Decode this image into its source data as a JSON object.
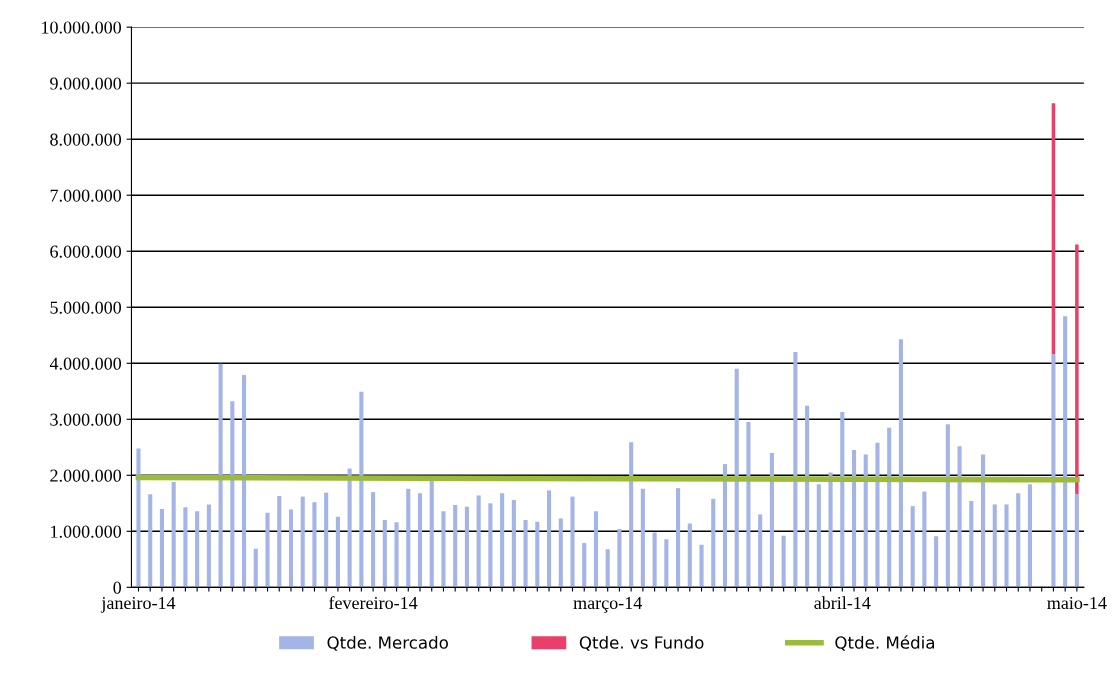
{
  "chart_data": {
    "type": "bar",
    "categories": [
      "janeiro-14",
      null,
      null,
      null,
      null,
      null,
      null,
      null,
      null,
      null,
      null,
      null,
      null,
      null,
      null,
      null,
      null,
      null,
      null,
      null,
      "fevereiro-14",
      null,
      null,
      null,
      null,
      null,
      null,
      null,
      null,
      null,
      null,
      null,
      null,
      null,
      null,
      null,
      null,
      null,
      null,
      null,
      "março-14",
      null,
      null,
      null,
      null,
      null,
      null,
      null,
      null,
      null,
      null,
      null,
      null,
      null,
      null,
      null,
      null,
      null,
      null,
      null,
      "abril-14",
      null,
      null,
      null,
      null,
      null,
      null,
      null,
      null,
      null,
      null,
      null,
      null,
      null,
      null,
      null,
      null,
      null,
      null,
      null,
      "maio-14"
    ],
    "series": [
      {
        "name": "Qtde. Mercado",
        "color": "#a4b4e6",
        "values": [
          2480000,
          1660000,
          1400000,
          1880000,
          1430000,
          1360000,
          1480000,
          3990000,
          3320000,
          3790000,
          690000,
          1330000,
          1630000,
          1390000,
          1620000,
          1520000,
          1690000,
          1260000,
          2120000,
          3490000,
          1700000,
          1200000,
          1160000,
          1760000,
          1680000,
          1900000,
          1360000,
          1470000,
          1440000,
          1640000,
          1500000,
          1680000,
          1560000,
          1200000,
          1170000,
          1730000,
          1230000,
          1620000,
          790000,
          1360000,
          680000,
          1040000,
          2590000,
          1760000,
          980000,
          860000,
          1770000,
          1140000,
          760000,
          1580000,
          2200000,
          3900000,
          2950000,
          1300000,
          2400000,
          920000,
          4200000,
          3240000,
          1840000,
          2050000,
          3130000,
          2450000,
          2370000,
          2580000,
          2850000,
          4430000,
          1450000,
          1710000,
          910000,
          2910000,
          2520000,
          1540000,
          2370000,
          1480000,
          1480000,
          1680000,
          1840000,
          null,
          4160000,
          4840000,
          1660000
        ]
      },
      {
        "name": "Qtde. vs Fundo",
        "color": "#e8406a",
        "values": [
          null,
          null,
          null,
          null,
          null,
          null,
          null,
          null,
          null,
          null,
          null,
          null,
          null,
          null,
          null,
          null,
          null,
          null,
          null,
          null,
          null,
          null,
          null,
          null,
          null,
          null,
          null,
          null,
          null,
          null,
          null,
          null,
          null,
          null,
          null,
          null,
          null,
          null,
          null,
          null,
          null,
          null,
          null,
          null,
          null,
          null,
          null,
          null,
          null,
          null,
          null,
          null,
          null,
          null,
          null,
          null,
          null,
          null,
          null,
          null,
          null,
          null,
          null,
          null,
          null,
          null,
          null,
          null,
          null,
          null,
          null,
          null,
          null,
          null,
          null,
          null,
          null,
          null,
          4480000,
          null,
          4460000
        ],
        "base": [
          null,
          null,
          null,
          null,
          null,
          null,
          null,
          null,
          null,
          null,
          null,
          null,
          null,
          null,
          null,
          null,
          null,
          null,
          null,
          null,
          null,
          null,
          null,
          null,
          null,
          null,
          null,
          null,
          null,
          null,
          null,
          null,
          null,
          null,
          null,
          null,
          null,
          null,
          null,
          null,
          null,
          null,
          null,
          null,
          null,
          null,
          null,
          null,
          null,
          null,
          null,
          null,
          null,
          null,
          null,
          null,
          null,
          null,
          null,
          null,
          null,
          null,
          null,
          null,
          null,
          null,
          null,
          null,
          null,
          null,
          null,
          null,
          null,
          null,
          null,
          null,
          null,
          null,
          4160000,
          null,
          1660000
        ]
      },
      {
        "name": "Qtde. Média",
        "type": "line",
        "color": "#9bbb3b",
        "x": [
          "janeiro-14",
          "maio-14"
        ],
        "values": [
          1960000,
          1920000
        ]
      }
    ],
    "ylim": [
      0,
      10000000
    ],
    "yticks": [
      0,
      {
        "value": 1000000,
        "label": "1.000.000"
      },
      {
        "value": 2000000,
        "label": "2.000.000"
      },
      {
        "value": 3000000,
        "label": "3.000.000"
      },
      {
        "value": 4000000,
        "label": "4.000.000"
      },
      {
        "value": 5000000,
        "label": "5.000.000"
      },
      {
        "value": 6000000,
        "label": "6.000.000"
      },
      {
        "value": 7000000,
        "label": "7.000.000"
      },
      {
        "value": 8000000,
        "label": "8.000.000"
      },
      {
        "value": 9000000,
        "label": "9.000.000"
      },
      {
        "value": 10000000,
        "label": "10.000.000"
      }
    ],
    "grid": "y",
    "legend": "bottom"
  }
}
